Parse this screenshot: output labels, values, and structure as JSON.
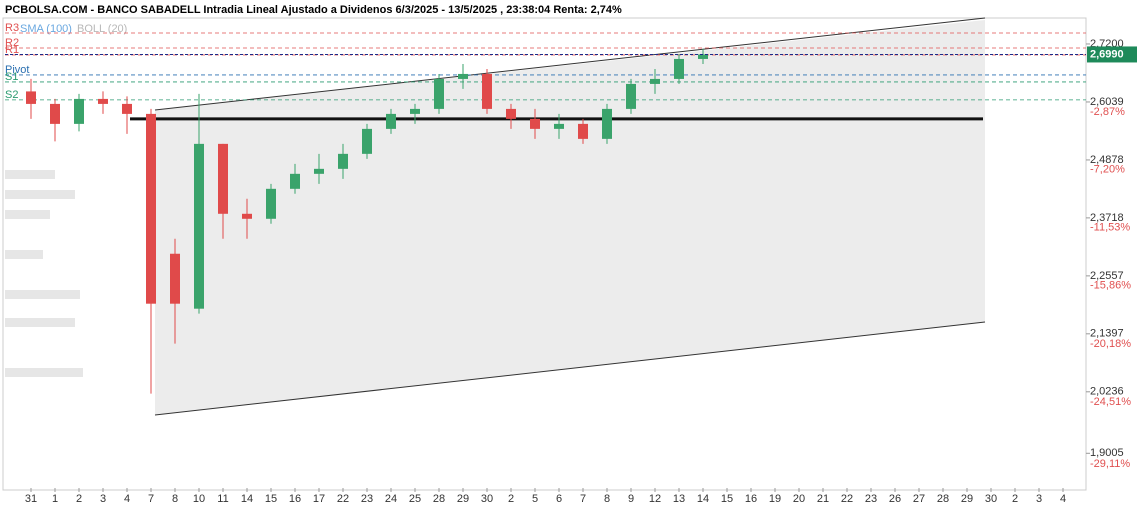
{
  "chart_data": {
    "type": "candlestick",
    "title": "PCBOLSA.COM - BANCO SABADELL Intradia Lineal Ajustado a Dividenos 6/3/2025 - 13/5/2025 , 23:38:04 Renta: 2,74%",
    "legend": [
      {
        "name": "SMA (100)",
        "color": "#6aa8e0"
      },
      {
        "name": "BOLL (20)",
        "color": "#b8b8b8"
      }
    ],
    "categories": [
      "31",
      "1",
      "2",
      "3",
      "4",
      "7",
      "8",
      "10",
      "11",
      "14",
      "15",
      "16",
      "17",
      "22",
      "23",
      "24",
      "25",
      "28",
      "29",
      "30",
      "2",
      "5",
      "6",
      "7",
      "8",
      "9",
      "12",
      "13",
      "14",
      "15",
      "16",
      "19",
      "20",
      "21",
      "22",
      "23",
      "26",
      "27",
      "28",
      "29",
      "30",
      "2",
      "3",
      "4"
    ],
    "open": [
      2.625,
      2.6,
      2.56,
      2.61,
      2.6,
      2.58,
      2.3,
      2.19,
      2.52,
      2.38,
      2.37,
      2.43,
      2.46,
      2.47,
      2.5,
      2.55,
      2.58,
      2.59,
      2.65,
      2.66,
      2.59,
      2.57,
      2.55,
      2.56,
      2.53,
      2.59,
      2.64,
      2.65,
      2.69,
      null,
      null,
      null,
      null,
      null,
      null,
      null,
      null,
      null,
      null,
      null,
      null,
      null,
      null,
      null
    ],
    "high": [
      2.65,
      2.61,
      2.62,
      2.625,
      2.615,
      2.59,
      2.33,
      2.62,
      2.52,
      2.41,
      2.44,
      2.48,
      2.5,
      2.52,
      2.56,
      2.59,
      2.6,
      2.66,
      2.68,
      2.67,
      2.6,
      2.59,
      2.58,
      2.57,
      2.6,
      2.65,
      2.67,
      2.7,
      2.71,
      null,
      null,
      null,
      null,
      null,
      null,
      null,
      null,
      null,
      null,
      null,
      null,
      null,
      null,
      null
    ],
    "low": [
      2.57,
      2.525,
      2.545,
      2.58,
      2.54,
      2.02,
      2.12,
      2.18,
      2.33,
      2.33,
      2.36,
      2.42,
      2.44,
      2.45,
      2.49,
      2.54,
      2.56,
      2.58,
      2.63,
      2.58,
      2.55,
      2.53,
      2.53,
      2.52,
      2.52,
      2.58,
      2.62,
      2.64,
      2.68,
      null,
      null,
      null,
      null,
      null,
      null,
      null,
      null,
      null,
      null,
      null,
      null,
      null,
      null,
      null
    ],
    "close": [
      2.6,
      2.56,
      2.61,
      2.6,
      2.58,
      2.2,
      2.2,
      2.52,
      2.38,
      2.37,
      2.43,
      2.46,
      2.47,
      2.5,
      2.55,
      2.58,
      2.59,
      2.65,
      2.66,
      2.59,
      2.57,
      2.55,
      2.56,
      2.53,
      2.59,
      2.64,
      2.65,
      2.69,
      2.699,
      null,
      null,
      null,
      null,
      null,
      null,
      null,
      null,
      null,
      null,
      null,
      null,
      null,
      null,
      null
    ],
    "up_color": "#3aa36b",
    "down_color": "#e04a4a",
    "ylim": [
      1.831,
      2.778
    ],
    "yticks": [
      {
        "value": 2.72,
        "label": "2,7200"
      },
      {
        "value": 2.6039,
        "label": "2,6039"
      },
      {
        "value": 2.4878,
        "label": "2,4878"
      },
      {
        "value": 2.3718,
        "label": "2,3718"
      },
      {
        "value": 2.2557,
        "label": "2,2557"
      },
      {
        "value": 2.1397,
        "label": "2,1397"
      },
      {
        "value": 2.0236,
        "label": "2,0236"
      },
      {
        "value": 1.9005,
        "label": "1,9005"
      }
    ],
    "pct_ticks": [
      {
        "value": 2.584,
        "label": "-2,87%"
      },
      {
        "value": 2.468,
        "label": "-7,20%"
      },
      {
        "value": 2.352,
        "label": "-11,53%"
      },
      {
        "value": 2.236,
        "label": "-15,86%"
      },
      {
        "value": 2.119,
        "label": "-20,18%"
      },
      {
        "value": 2.003,
        "label": "-24,51%"
      },
      {
        "value": 1.879,
        "label": "-29,11%"
      }
    ],
    "levels": [
      {
        "label": "R3",
        "value": 2.742,
        "color": "#e05050"
      },
      {
        "label": "R2",
        "value": 2.712,
        "color": "#e05050"
      },
      {
        "label": "R1",
        "value": 2.698,
        "color": "#e05050"
      },
      {
        "label": "Pivot",
        "value": 2.658,
        "color": "#2a6fb0"
      },
      {
        "label": "S1",
        "value": 2.644,
        "color": "#2a9a70"
      },
      {
        "label": "S2",
        "value": 2.608,
        "color": "#2a9a70"
      }
    ],
    "support_line": 2.57,
    "last_price": {
      "value": 2.699,
      "label": "2,6990"
    }
  }
}
